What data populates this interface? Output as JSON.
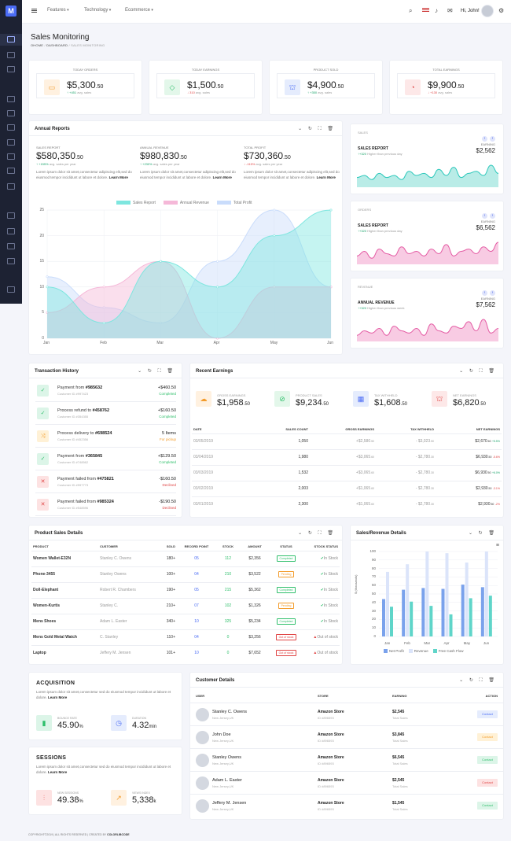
{
  "brand": {
    "logo": "M"
  },
  "topbar": {
    "menus": [
      "Features",
      "Technology",
      "Ecommerce"
    ],
    "greeting": "Hi, John!"
  },
  "page": {
    "title": "Sales Monitoring",
    "crumb_home": "OHOME",
    "crumb_sep": "/",
    "crumb_dash": "DASHBOARD",
    "crumb_current": "SALES MONITORING"
  },
  "stats": [
    {
      "label": "TODAY ORDERS",
      "value": "$5,300",
      "dec": ".50",
      "delta": "+451",
      "sub": "avg. sales",
      "dir": "up",
      "icon": "monitor-icon",
      "bg": "#fff1e0",
      "fg": "#f39c2b"
    },
    {
      "label": "TODAY EARNINGS",
      "value": "$1,500",
      "dec": ".50",
      "delta": "310",
      "sub": "avg. sales",
      "dir": "down",
      "icon": "diamond-icon",
      "bg": "#e3f7ea",
      "fg": "#2fbf6b"
    },
    {
      "label": "PRODUCT SOLD",
      "value": "$4,900",
      "dec": ".50",
      "delta": "+350",
      "sub": "avg. sales",
      "dir": "up",
      "icon": "bag-icon",
      "bg": "#e5ecfd",
      "fg": "#4b6cf5"
    },
    {
      "label": "TOTAL EARNINGS",
      "value": "$9,900",
      "dec": ".50",
      "delta": "+130",
      "sub": "avg. sales",
      "dir": "down",
      "icon": "gauge-icon",
      "bg": "#fde8e8",
      "fg": "#e04545"
    }
  ],
  "annual": {
    "title": "Annual Reports",
    "cols": [
      {
        "label": "SALES REPORT",
        "value": "$580,350",
        "dec": ".50",
        "delta": "+155%",
        "sub": "avg. sales per year",
        "dir": "up",
        "text": "Lorem ipsum dolor sit amet,consectetur adipiscing elit,sed do eiusmod tempor incididunt ut labore et dolore.",
        "more": "Learn More"
      },
      {
        "label": "ANNUAL REVENUE",
        "value": "$980,830",
        "dec": ".50",
        "delta": "+230%",
        "sub": "avg. sales per year",
        "dir": "up",
        "text": "Lorem ipsum dolor sit amet,consectetur adipiscing elit,sed do eiusmod tempor incididunt ut labore et dolore.",
        "more": "Learn More"
      },
      {
        "label": "TOTAL PROFIT",
        "value": "$730,360",
        "dec": ".50",
        "delta": "-115%",
        "sub": "avg. sales per year",
        "dir": "down",
        "text": "Lorem ipsum dolor sit amet,consectetur adipiscing elit,sed do eiusmod tempor incididunt ut labore et dolore.",
        "more": "Learn More"
      }
    ]
  },
  "chart_data": [
    {
      "type": "area",
      "x": [
        "Jan",
        "Feb",
        "Mar",
        "Apr",
        "May",
        "Jun"
      ],
      "ylim": [
        0,
        25
      ],
      "yticks": [
        0,
        5,
        10,
        15,
        20,
        25
      ],
      "legend_position": "top",
      "series": [
        {
          "name": "Sales Report",
          "color": "#7ee6df",
          "values": [
            10,
            3,
            15,
            10,
            20,
            25
          ]
        },
        {
          "name": "Annual Revenue",
          "color": "#f5b8d8",
          "values": [
            5,
            10,
            15,
            0,
            10,
            10
          ]
        },
        {
          "name": "Total Profit",
          "color": "#c9dcfb",
          "values": [
            12,
            6,
            3,
            15,
            25,
            10
          ]
        }
      ]
    },
    {
      "type": "area",
      "title": "SALES REPORT",
      "values": [
        4,
        5,
        3,
        6,
        4,
        5,
        3,
        7,
        5,
        6,
        4,
        8,
        5,
        9,
        4,
        6,
        7,
        5,
        10,
        6
      ]
    },
    {
      "type": "area",
      "title": "SALES REPORT",
      "values": [
        3,
        5,
        2,
        6,
        4,
        3,
        7,
        4,
        5,
        3,
        6,
        4,
        8,
        3,
        5,
        6,
        4,
        7,
        5,
        9
      ]
    },
    {
      "type": "area",
      "title": "ANNUAL REVENUE",
      "values": [
        2,
        4,
        3,
        5,
        2,
        6,
        4,
        3,
        5,
        2,
        7,
        4,
        3,
        6,
        5,
        8,
        4,
        9,
        3,
        5
      ]
    },
    {
      "type": "bar",
      "ylabel": "$ (thousands)",
      "ylim": [
        0,
        100
      ],
      "yticks": [
        0,
        10,
        20,
        30,
        40,
        50,
        60,
        70,
        80,
        90,
        100
      ],
      "x": [
        "Jan",
        "Feb",
        "Mar",
        "Apr",
        "May",
        "Jun"
      ],
      "legend_position": "bottom",
      "series": [
        {
          "name": "Net Profit",
          "color": "#7aa2ec",
          "values": [
            44,
            55,
            57,
            56,
            61,
            58
          ]
        },
        {
          "name": "Revenue",
          "color": "#dbe4fa",
          "values": [
            76,
            85,
            101,
            98,
            87,
            105
          ]
        },
        {
          "name": "Free Cash Flow",
          "color": "#5fd5c9",
          "values": [
            35,
            41,
            36,
            26,
            45,
            48
          ]
        }
      ]
    }
  ],
  "small_cards": [
    {
      "label": "SALES",
      "title": "SALES REPORT",
      "delta": "+320",
      "sub": "Higher than previous day",
      "earn_label": "EARNING",
      "value": "$2,562",
      "color": "#2cc8bb",
      "fill": "#b9ece7"
    },
    {
      "label": "ORDERS",
      "title": "SALES REPORT",
      "delta": "+320",
      "sub": "Higher than previous day",
      "earn_label": "EARNING",
      "value": "$6,562",
      "color": "#e45aa3",
      "fill": "#f8cbe3"
    },
    {
      "label": "REVENUE",
      "title": "ANNUAL REVENUE",
      "delta": "+320",
      "sub": "Higher than previous week",
      "earn_label": "EARNING",
      "value": "$7,562",
      "color": "#e45aa3",
      "fill": "#f8cbe3"
    }
  ],
  "transactions": {
    "title": "Transaction History",
    "rows": [
      {
        "text": "Payment from ",
        "id": "#985632",
        "sub": "Customer ID #997423",
        "amount": "+$460.50",
        "status": "Completed",
        "icon": "check-icon",
        "kind": "ok"
      },
      {
        "text": "Process refund to ",
        "id": "#458762",
        "sub": "Customer ID #354355",
        "amount": "+$160.50",
        "status": "Completed",
        "icon": "check-icon",
        "kind": "ok"
      },
      {
        "text": "Process delivery to ",
        "id": "#698524",
        "sub": "Customer ID #452356",
        "amount": "5 Items",
        "status": "For pickup",
        "icon": "shuffle-icon",
        "kind": "warn"
      },
      {
        "text": "Payment from ",
        "id": "#365845",
        "sub": "Customer ID #748562",
        "amount": "+$129.50",
        "status": "Completed",
        "icon": "check-icon",
        "kind": "ok"
      },
      {
        "text": "Payment failed from ",
        "id": "#475821",
        "sub": "Customer ID #997773",
        "amount": "-$160.50",
        "status": "Declined",
        "icon": "close-icon",
        "kind": "bad"
      },
      {
        "text": "Payment failed from ",
        "id": "#985324",
        "sub": "Customer ID #548596",
        "amount": "-$190.50",
        "status": "Declined",
        "icon": "close-icon",
        "kind": "bad"
      }
    ]
  },
  "earnings": {
    "title": "Recent Earnings",
    "boxes": [
      {
        "label": "GROSS EARNINGS",
        "value": "$1,958",
        "dec": ".50",
        "icon": "cloud-icon",
        "bg": "#fff1e0",
        "fg": "#f39c2b"
      },
      {
        "label": "PRODUCT SALES",
        "value": "$9,234",
        "dec": ".50",
        "icon": "ban-icon",
        "bg": "#e3f7ea",
        "fg": "#2fbf6b"
      },
      {
        "label": "TAX WITHHELD",
        "value": "$1,608",
        "dec": ".50",
        "icon": "calculator-icon",
        "bg": "#e5ecfd",
        "fg": "#4b6cf5"
      },
      {
        "label": "NET EARNINGS",
        "value": "$6,820",
        "dec": ".50",
        "icon": "bag-icon",
        "bg": "#fde8e8",
        "fg": "#e04545"
      }
    ],
    "headers": [
      "DATE",
      "SALES COUNT",
      "GROSS EARNINGS",
      "TAX WITHHELD",
      "NET EARNINGS"
    ],
    "rows": [
      {
        "date": "03/05/2019",
        "count": "1,050",
        "gross": "+$2,580",
        "gd": ".50",
        "tax": "- $3,023",
        "td": ".50",
        "net": "$2,670",
        "nd": ".60",
        "pct": "+5.5%",
        "dir": "up"
      },
      {
        "date": "03/04/2019",
        "count": "1,980",
        "gross": "+$3,065",
        "gd": ".60",
        "tax": "- $2,780",
        "td": ".30",
        "net": "$6,930",
        "nd": ".50",
        "pct": "-5.6%",
        "dir": "down"
      },
      {
        "date": "03/03/2019",
        "count": "1,532",
        "gross": "+$3,065",
        "gd": ".60",
        "tax": "- $2,780",
        "td": ".30",
        "net": "$6,930",
        "nd": ".50",
        "pct": "+6.0%",
        "dir": "up"
      },
      {
        "date": "03/02/2019",
        "count": "2,003",
        "gross": "+$1,065",
        "gd": ".60",
        "tax": "- $2,780",
        "td": ".30",
        "net": "$2,930",
        "nd": ".50",
        "pct": "-3.1%",
        "dir": "down"
      },
      {
        "date": "03/01/2019",
        "count": "2,300",
        "gross": "+$1,065",
        "gd": ".60",
        "tax": "- $2,780",
        "td": ".30",
        "net": "$2,930",
        "nd": ".50",
        "pct": "-2%",
        "dir": "down"
      }
    ]
  },
  "products": {
    "title": "Product Sales Details",
    "headers": [
      "PRODUCT",
      "CUSTOMER",
      "SOLD",
      "RECORD POINT",
      "STOCK",
      "AMOUNT",
      "STATUS",
      "STOCK STATUS"
    ],
    "rows": [
      {
        "product": "Women Wallet-E32N",
        "customer": "Stanley C. Owens",
        "sold": "180+",
        "record": "05",
        "stock": "112",
        "amount": "$2,356",
        "status": "Completed",
        "stock_status": "In Stock",
        "ok": true
      },
      {
        "product": "Phone-3455",
        "customer": "Stanley Owens",
        "sold": "100+",
        "record": "04",
        "stock": "210",
        "amount": "$3,522",
        "status": "Pending",
        "stock_status": "In Stock",
        "ok": true
      },
      {
        "product": "Doll-Elephant",
        "customer": "Robert R. Chambers",
        "sold": "190+",
        "record": "05",
        "stock": "215",
        "amount": "$5,362",
        "status": "Completed",
        "stock_status": "In Stock",
        "ok": true
      },
      {
        "product": "Women-Kurtis",
        "customer": "Stanley C.",
        "sold": "210+",
        "record": "07",
        "stock": "102",
        "amount": "$1,326",
        "status": "Pending",
        "stock_status": "In Stock",
        "ok": true
      },
      {
        "product": "Mens Shoes",
        "customer": "Adam L. Easter",
        "sold": "340+",
        "record": "10",
        "stock": "325",
        "amount": "$5,234",
        "status": "Completed",
        "stock_status": "In Stock",
        "ok": true
      },
      {
        "product": "Mens Gold Metal Watch",
        "customer": "C. Stanley",
        "sold": "110+",
        "record": "04",
        "stock": "0",
        "amount": "$3,256",
        "status": "Out of stock",
        "stock_status": "Out of stock",
        "ok": false
      },
      {
        "product": "Laptop",
        "customer": "Jeffery M. Jensen",
        "sold": "101+",
        "record": "10",
        "stock": "0",
        "amount": "$7,652",
        "status": "Out of stock",
        "stock_status": "Out of stock",
        "ok": false
      }
    ]
  },
  "sales_revenue": {
    "title": "Sales/Revenue Details"
  },
  "acquisition": {
    "title": "ACQUISITION",
    "text": "Lorem ipsum dolor sit amet,consectetur sed do eiusmod tempor incididunt ut labore et dolore.",
    "more": "Learn More",
    "m1_label": "BOUNCE RATE",
    "m1_value": "45.90",
    "m1_unit": "%",
    "m2_label": "DURATION",
    "m2_value": "4.32",
    "m2_unit": "min"
  },
  "sessions": {
    "title": "SESSIONS",
    "text": "Lorem ipsum dolor sit amet,consectetur sed do eiusmod tempor incididunt ut labore et dolore.",
    "more": "Learn More",
    "m1_label": "NEW SESSIONS",
    "m1_value": "49.38",
    "m1_unit": "%",
    "m2_label": "VIEWS INDEX",
    "m2_value": "5,338",
    "m2_unit": "k"
  },
  "customers": {
    "title": "Customer Details",
    "headers": [
      "USER",
      "STORE",
      "EARNING",
      "ACTION"
    ],
    "rows": [
      {
        "name": "Stanley C. Owens",
        "loc": "New Jersey,UK",
        "store": "Amazon Store",
        "sid": "ID #896593",
        "earn": "$2,545",
        "esub": "Total Sales",
        "action": "Contact",
        "bg": "#e5ecfd",
        "fg": "#4b6cf5"
      },
      {
        "name": "John Doe",
        "loc": "New Jersey,UK",
        "store": "Amazon Store",
        "sid": "ID #896593",
        "earn": "$3,845",
        "esub": "Total Sales",
        "action": "Contact",
        "bg": "#fff1d6",
        "fg": "#f39c2b"
      },
      {
        "name": "Stanley Owens",
        "loc": "New Jersey,UK",
        "store": "Amazon Store",
        "sid": "ID #896593",
        "earn": "$6,545",
        "esub": "Total Sales",
        "action": "Contact",
        "bg": "#dcf5e8",
        "fg": "#2fbf6b"
      },
      {
        "name": "Adam L. Easter",
        "loc": "New Jersey,UK",
        "store": "Amazon Store",
        "sid": "ID #896593",
        "earn": "$2,545",
        "esub": "Total Sales",
        "action": "Contact",
        "bg": "#fde2e2",
        "fg": "#e04545"
      },
      {
        "name": "Jeffery M. Jensen",
        "loc": "New Jersey,UK",
        "store": "Amazon Store",
        "sid": "ID #896593",
        "earn": "$1,545",
        "esub": "Total Sales",
        "action": "Contact",
        "bg": "#dcf5e8",
        "fg": "#2fbf6b"
      }
    ]
  },
  "footer": {
    "text": "COPYRIGHT©2019 | ALL RIGHTS RESERVED | CREATED BY ",
    "brand": "COLORLIBCODE"
  }
}
